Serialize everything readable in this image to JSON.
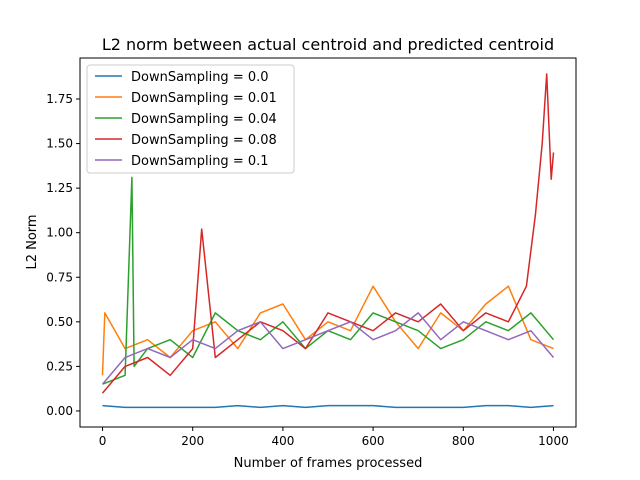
{
  "chart_data": {
    "type": "line",
    "title": "L2 norm between actual centroid and predicted centroid",
    "xlabel": "Number of frames processed",
    "ylabel": "L2 Norm",
    "xlim": [
      -50,
      1050
    ],
    "ylim": [
      -0.09,
      1.98
    ],
    "xticks": [
      0,
      200,
      400,
      600,
      800,
      1000
    ],
    "yticks": [
      0.0,
      0.25,
      0.5,
      0.75,
      1.0,
      1.25,
      1.5,
      1.75
    ],
    "ytick_labels": [
      "0.00",
      "0.25",
      "0.50",
      "0.75",
      "1.00",
      "1.25",
      "1.50",
      "1.75"
    ],
    "legend_position": "upper-left",
    "grid": false,
    "series": [
      {
        "name": "DownSampling = 0.0",
        "color": "#1f77b4",
        "x": [
          0,
          50,
          100,
          150,
          200,
          250,
          300,
          350,
          400,
          450,
          500,
          550,
          600,
          650,
          700,
          750,
          800,
          850,
          900,
          950,
          1000
        ],
        "values": [
          0.03,
          0.02,
          0.02,
          0.02,
          0.02,
          0.02,
          0.03,
          0.02,
          0.03,
          0.02,
          0.03,
          0.03,
          0.03,
          0.02,
          0.02,
          0.02,
          0.02,
          0.03,
          0.03,
          0.02,
          0.03
        ]
      },
      {
        "name": "DownSampling = 0.01",
        "color": "#ff7f0e",
        "x": [
          0,
          5,
          50,
          100,
          150,
          200,
          250,
          300,
          350,
          400,
          450,
          500,
          550,
          600,
          650,
          700,
          750,
          800,
          850,
          900,
          950,
          1000
        ],
        "values": [
          0.2,
          0.55,
          0.35,
          0.4,
          0.3,
          0.45,
          0.5,
          0.35,
          0.55,
          0.6,
          0.4,
          0.5,
          0.45,
          0.7,
          0.5,
          0.35,
          0.55,
          0.45,
          0.6,
          0.7,
          0.4,
          0.35
        ]
      },
      {
        "name": "DownSampling = 0.04",
        "color": "#2ca02c",
        "x": [
          0,
          50,
          65,
          70,
          100,
          150,
          200,
          250,
          300,
          350,
          400,
          450,
          500,
          550,
          600,
          650,
          700,
          750,
          800,
          850,
          900,
          950,
          1000
        ],
        "values": [
          0.15,
          0.2,
          1.31,
          0.25,
          0.35,
          0.4,
          0.3,
          0.55,
          0.45,
          0.4,
          0.5,
          0.35,
          0.45,
          0.4,
          0.55,
          0.5,
          0.45,
          0.35,
          0.4,
          0.5,
          0.45,
          0.55,
          0.4
        ]
      },
      {
        "name": "DownSampling = 0.08",
        "color": "#d62728",
        "x": [
          0,
          50,
          100,
          150,
          200,
          220,
          250,
          300,
          350,
          400,
          450,
          500,
          550,
          600,
          650,
          700,
          750,
          800,
          850,
          900,
          940,
          960,
          975,
          985,
          995,
          1000
        ],
        "values": [
          0.1,
          0.25,
          0.3,
          0.2,
          0.35,
          1.02,
          0.3,
          0.4,
          0.5,
          0.45,
          0.35,
          0.55,
          0.5,
          0.45,
          0.55,
          0.5,
          0.6,
          0.45,
          0.55,
          0.5,
          0.7,
          1.1,
          1.5,
          1.89,
          1.3,
          1.45
        ]
      },
      {
        "name": "DownSampling = 0.1",
        "color": "#9467bd",
        "x": [
          0,
          50,
          100,
          150,
          200,
          250,
          300,
          350,
          400,
          450,
          500,
          550,
          600,
          650,
          700,
          750,
          800,
          850,
          900,
          950,
          1000
        ],
        "values": [
          0.15,
          0.3,
          0.35,
          0.3,
          0.4,
          0.35,
          0.45,
          0.5,
          0.35,
          0.4,
          0.45,
          0.5,
          0.4,
          0.45,
          0.55,
          0.4,
          0.5,
          0.45,
          0.4,
          0.45,
          0.3
        ]
      }
    ]
  }
}
